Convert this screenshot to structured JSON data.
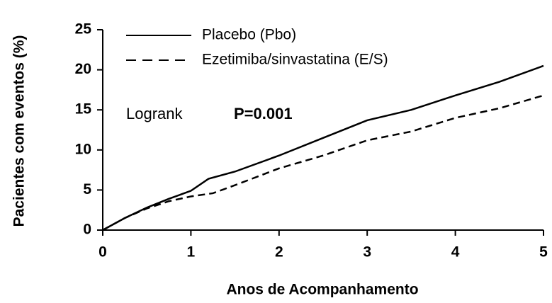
{
  "chart_data": {
    "type": "line",
    "x_label": "Anos de Acompanhamento",
    "y_label": "Pacientes com eventos (%)",
    "annotations": [
      "Logrank",
      "P=0.001"
    ],
    "xlim": [
      0,
      5
    ],
    "xticks": [
      0,
      1,
      2,
      3,
      4,
      5
    ],
    "ylim": [
      0,
      25
    ],
    "yticks": [
      0,
      5,
      10,
      15,
      20,
      25
    ],
    "series": [
      {
        "name": "Placebo (Pbo)",
        "color": "#000000",
        "style": "solid",
        "x": [
          0,
          0.25,
          0.5,
          0.75,
          1.0,
          1.2,
          1.5,
          2.0,
          2.5,
          3.0,
          3.5,
          4.0,
          4.5,
          5.0
        ],
        "values": [
          0,
          1.5,
          2.8,
          3.9,
          4.9,
          6.4,
          7.3,
          9.3,
          11.5,
          13.7,
          15.0,
          16.8,
          18.5,
          20.5
        ]
      },
      {
        "name": "Ezetimiba/sinvastatina (E/S)",
        "color": "#000000",
        "style": "dashed",
        "x": [
          0,
          0.25,
          0.5,
          0.75,
          1.0,
          1.25,
          1.5,
          2.0,
          2.5,
          3.0,
          3.5,
          4.0,
          4.5,
          5.0
        ],
        "values": [
          0,
          1.5,
          2.7,
          3.6,
          4.2,
          4.6,
          5.6,
          7.7,
          9.3,
          11.2,
          12.3,
          14.0,
          15.2,
          16.8
        ]
      }
    ]
  }
}
